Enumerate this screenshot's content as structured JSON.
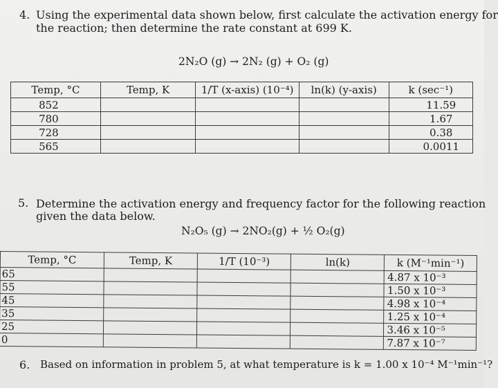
{
  "q4": {
    "number": "4.",
    "line1": "Using the experimental data shown below, first calculate the activation energy for",
    "line2": "the reaction; then determine the rate constant at 699 K.",
    "equation": "2N₂O (g) → 2N₂ (g) + O₂ (g)",
    "table": {
      "headers": [
        "Temp, °C",
        "Temp, K",
        "1/T (x-axis) (10⁻⁴)",
        "ln(k) (y-axis)",
        "k (sec⁻¹)"
      ],
      "rows": [
        [
          "852",
          "",
          "",
          "",
          "11.59"
        ],
        [
          "780",
          "",
          "",
          "",
          "1.67"
        ],
        [
          "728",
          "",
          "",
          "",
          "0.38"
        ],
        [
          "565",
          "",
          "",
          "",
          "0.0011"
        ]
      ]
    }
  },
  "q5": {
    "number": "5.",
    "line1": "Determine the activation energy and frequency factor for the following reaction",
    "line2": "given the data below.",
    "equation": "N₂O₅ (g) → 2NO₂(g) + ½ O₂(g)",
    "table": {
      "headers": [
        "Temp, °C",
        "Temp, K",
        "1/T (10⁻³)",
        "ln(k)",
        "k (M⁻¹min⁻¹)"
      ],
      "rows": [
        [
          "65",
          "",
          "",
          "",
          "4.87 x 10⁻³"
        ],
        [
          "55",
          "",
          "",
          "",
          "1.50 x 10⁻³"
        ],
        [
          "45",
          "",
          "",
          "",
          "4.98 x 10⁻⁴"
        ],
        [
          "35",
          "",
          "",
          "",
          "1.25 x 10⁻⁴"
        ],
        [
          "25",
          "",
          "",
          "",
          "3.46 x 10⁻⁵"
        ],
        [
          "0",
          "",
          "",
          "",
          "7.87 x 10⁻⁷"
        ]
      ]
    }
  },
  "q6": {
    "number": "6.",
    "text": "Based on information in problem 5, at what temperature is k = 1.00 x 10⁻⁴ M⁻¹min⁻¹?"
  }
}
